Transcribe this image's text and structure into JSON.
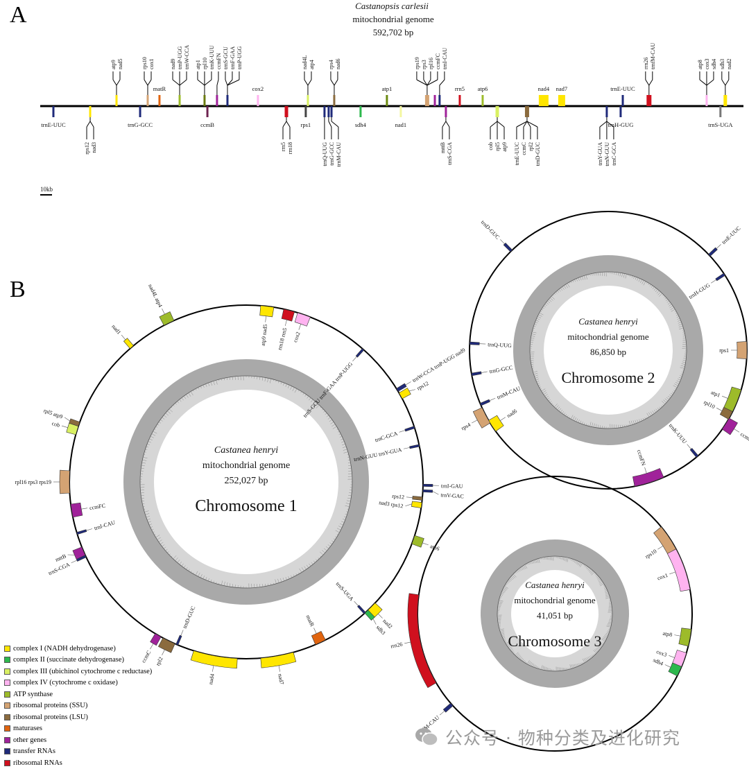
{
  "panelA": {
    "letter": "A",
    "species": "Castanopsis carlesii",
    "subtitle": "mitochondrial genome",
    "size": "592,702 bp",
    "total_kb": 592.702,
    "scale_label": "10kb",
    "features": [
      {
        "kb": 64.3,
        "color": "#ffe600",
        "side": "top",
        "labels": [
          "atp9",
          "nad5"
        ]
      },
      {
        "kb": 90.6,
        "color": "#d4a373",
        "side": "top",
        "labels": [
          "rps10",
          "cox1"
        ]
      },
      {
        "kb": 100.5,
        "color": "#e0640f",
        "side": "top",
        "labels": [
          "matR"
        ],
        "h": true
      },
      {
        "kb": 117.5,
        "color": "#9dbb2a",
        "side": "top",
        "labels": [
          "nad9",
          "trnP-UGG",
          "trnW-CCA"
        ]
      },
      {
        "kb": 138.5,
        "color": "#6b7a10",
        "side": "top",
        "labels": [
          "atp1",
          "rpl10",
          "trnK-UUU"
        ]
      },
      {
        "kb": 149.0,
        "color": "#a0229a",
        "side": "top",
        "labels": [
          "ccmFN"
        ]
      },
      {
        "kb": 157.8,
        "color": "#1f2a7a",
        "side": "top",
        "labels": [
          "trnS-GCU",
          "trnF-GAA",
          "trnP-UGG"
        ]
      },
      {
        "kb": 183.5,
        "color": "#ffb3f0",
        "side": "top",
        "labels": [
          "cox2"
        ],
        "h": true
      },
      {
        "kb": 225.6,
        "color": "#d9f062",
        "side": "top",
        "labels": [
          "nad4L",
          "atp4"
        ]
      },
      {
        "kb": 247.8,
        "color": "#8b6b3e",
        "side": "top",
        "labels": [
          "rps4",
          "nad6"
        ]
      },
      {
        "kb": 292.2,
        "color": "#6b8a10",
        "side": "top",
        "labels": [
          "atp1"
        ],
        "h": true
      },
      {
        "kb": 326.1,
        "color": "#d4a373",
        "side": "top",
        "labels": [
          "rps19",
          "rps3",
          "rpl16",
          "ccmFC"
        ],
        "w": 6
      },
      {
        "kb": 332.6,
        "color": "#a0229a",
        "side": "top",
        "labels": []
      },
      {
        "kb": 336.6,
        "color": "#1f2a7a",
        "side": "top",
        "labels": [
          "trnI-CAU"
        ]
      },
      {
        "kb": 353.6,
        "color": "#d0101e",
        "side": "top",
        "labels": [
          "rrn5"
        ],
        "h": true
      },
      {
        "kb": 372.9,
        "color": "#9dbb2a",
        "side": "top",
        "labels": [
          "atp6"
        ],
        "h": true
      },
      {
        "kb": 424.3,
        "color": "#ffe600",
        "side": "top",
        "labels": [
          "nad4"
        ],
        "h": true,
        "w": 14
      },
      {
        "kb": 439.5,
        "color": "#ffe600",
        "side": "top",
        "labels": [
          "nad7"
        ],
        "h": true,
        "w": 10
      },
      {
        "kb": 491.0,
        "color": "#1f2a7a",
        "side": "top",
        "labels": [
          "trnE-UUC"
        ],
        "h": true
      },
      {
        "kb": 513.1,
        "color": "#d0101e",
        "side": "top",
        "labels": [
          "rrn26",
          "trnfM-CAU"
        ],
        "w": 7
      },
      {
        "kb": 561.7,
        "color": "#ffb3f0",
        "side": "top",
        "labels": [
          "atp8",
          "cox3",
          "sdh4"
        ]
      },
      {
        "kb": 577.4,
        "color": "#ffe600",
        "side": "top",
        "labels": [
          "sdh3",
          "nad2"
        ],
        "w": 5
      },
      {
        "kb": 11.1,
        "color": "#1f2a7a",
        "side": "bottom",
        "labels": [
          "trnE-UUC"
        ],
        "h": true
      },
      {
        "kb": 42.1,
        "color": "#ffe600",
        "side": "bottom",
        "labels": [
          "rps12",
          "nad3"
        ]
      },
      {
        "kb": 84.2,
        "color": "#1f2a7a",
        "side": "bottom",
        "labels": [
          "trnG-GCC"
        ],
        "h": true
      },
      {
        "kb": 140.9,
        "color": "#6e2250",
        "side": "bottom",
        "labels": [
          "ccmB"
        ],
        "h": true
      },
      {
        "kb": 207.5,
        "color": "#d0101e",
        "side": "bottom",
        "labels": [
          "rrn5",
          "rrn18"
        ],
        "w": 5
      },
      {
        "kb": 223.8,
        "color": "#444444",
        "side": "bottom",
        "labels": [
          "rps1"
        ],
        "h": true
      },
      {
        "kb": 239.6,
        "color": "#1f2a7a",
        "side": "bottom",
        "labels": [
          "trnQ-UUG"
        ]
      },
      {
        "kb": 243.1,
        "color": "#1f2a7a",
        "side": "bottom",
        "labels": [
          "trnG-GCC"
        ]
      },
      {
        "kb": 245.5,
        "color": "#1f2a7a",
        "side": "bottom",
        "labels": [
          "trnM-CAU"
        ]
      },
      {
        "kb": 270.0,
        "color": "#2db84d",
        "side": "bottom",
        "labels": [
          "sdh4"
        ],
        "h": true
      },
      {
        "kb": 303.9,
        "color": "#f4f7a0",
        "side": "bottom",
        "labels": [
          "nad1"
        ],
        "h": true
      },
      {
        "kb": 341.9,
        "color": "#a0229a",
        "side": "bottom",
        "labels": [
          "mttB",
          "trnS-CGA"
        ]
      },
      {
        "kb": 385.2,
        "color": "#d9f062",
        "side": "bottom",
        "labels": [
          "cob",
          "rpl5",
          "atp9"
        ],
        "w": 5
      },
      {
        "kb": 410.3,
        "color": "#8b6b3e",
        "side": "bottom",
        "labels": [
          "trnE-UUC",
          "ccmC",
          "rpl2",
          "trnD-GUC"
        ],
        "w": 6
      },
      {
        "kb": 477.5,
        "color": "#1f2a7a",
        "side": "bottom",
        "labels": [
          "trnY-GUA",
          "trnN-GUU",
          "trnC-GCA"
        ]
      },
      {
        "kb": 489.2,
        "color": "#1f2a7a",
        "side": "bottom",
        "labels": [
          "trnH-GUG"
        ],
        "h": true
      },
      {
        "kb": 573.3,
        "color": "#777777",
        "side": "bottom",
        "labels": [
          "trnS-UGA"
        ],
        "h": true
      }
    ]
  },
  "panelB": {
    "letter": "B",
    "chromosomes": [
      {
        "species": "Castanea henryi",
        "subtitle": "mitochondrial genome",
        "size": "252,027 bp",
        "name": "Chromosome 1",
        "features": [
          {
            "at": 0.019,
            "span": 0.012,
            "color": "#ffe600",
            "side": "in",
            "label": "atp9 nad5"
          },
          {
            "at": 0.039,
            "span": 0.01,
            "color": "#d0101e",
            "side": "in",
            "label": "rrn18 rrn5"
          },
          {
            "at": 0.053,
            "span": 0.012,
            "color": "#ffb3f0",
            "side": "in",
            "label": "cox2"
          },
          {
            "at": 0.115,
            "span": 0.002,
            "color": "#1f2a7a",
            "side": "in",
            "label": "trnS-GCU trnF-GAA trnP-UGG"
          },
          {
            "at": 0.163,
            "span": 0.003,
            "color": "#1f2a7a",
            "side": "out",
            "label": "trnW-CCA trnP-UGG nad9"
          },
          {
            "at": 0.169,
            "span": 0.006,
            "color": "#ffe600",
            "side": "out",
            "label": "rps12"
          },
          {
            "at": 0.2,
            "span": 0.002,
            "color": "#1f2a7a",
            "side": "in",
            "label": "trnC-GCA"
          },
          {
            "at": 0.217,
            "span": 0.002,
            "color": "#1f2a7a",
            "side": "in",
            "label": "trnN-GUU trnY-GUA"
          },
          {
            "at": 0.253,
            "span": 0.002,
            "color": "#1f2a7a",
            "side": "out",
            "label": "trnI-GAU"
          },
          {
            "at": 0.258,
            "span": 0.002,
            "color": "#1f2a7a",
            "side": "out",
            "label": "trnV-GAC"
          },
          {
            "at": 0.265,
            "span": 0.003,
            "color": "#8b6b3e",
            "side": "in",
            "label": "rps12"
          },
          {
            "at": 0.271,
            "span": 0.005,
            "color": "#ffe600",
            "side": "in",
            "label": "nad3 rps12"
          },
          {
            "at": 0.303,
            "span": 0.008,
            "color": "#9dbb2a",
            "side": "out",
            "label": "atp6"
          },
          {
            "at": 0.375,
            "span": 0.01,
            "color": "#ffe600",
            "side": "out",
            "label": "nad2"
          },
          {
            "at": 0.381,
            "span": 0.004,
            "color": "#2db84d",
            "side": "out",
            "label": "sdh3"
          },
          {
            "at": 0.383,
            "span": 0.002,
            "color": "#1f2a7a",
            "side": "in",
            "label": "trnS-UGA"
          },
          {
            "at": 0.431,
            "span": 0.01,
            "color": "#e0640f",
            "side": "in",
            "label": "matR"
          },
          {
            "at": 0.472,
            "span": 0.03,
            "color": "#ffe600",
            "side": "out",
            "label": "nad7"
          },
          {
            "at": 0.528,
            "span": 0.04,
            "color": "#ffe600",
            "side": "out",
            "label": "nad4"
          },
          {
            "at": 0.564,
            "span": 0.002,
            "color": "#1f2a7a",
            "side": "in",
            "label": "trnD-GUC"
          },
          {
            "at": 0.572,
            "span": 0.012,
            "color": "#8b6b3e",
            "side": "out",
            "label": "rpl2"
          },
          {
            "at": 0.583,
            "span": 0.006,
            "color": "#a0229a",
            "side": "out",
            "label": "ccmC"
          },
          {
            "at": 0.681,
            "span": 0.002,
            "color": "#1f2a7a",
            "side": "out",
            "label": "trnS-CGA"
          },
          {
            "at": 0.686,
            "span": 0.008,
            "color": "#a0229a",
            "side": "out",
            "label": "mttB"
          },
          {
            "at": 0.703,
            "span": 0.002,
            "color": "#1f2a7a",
            "side": "in",
            "label": "trnI-CAU"
          },
          {
            "at": 0.724,
            "span": 0.012,
            "color": "#a0229a",
            "side": "in",
            "label": "ccmFC"
          },
          {
            "at": 0.75,
            "span": 0.02,
            "color": "#d4a373",
            "side": "out",
            "label": "rpl16 rps3 rps19"
          },
          {
            "at": 0.797,
            "span": 0.008,
            "color": "#d9f062",
            "side": "out",
            "label": "cob"
          },
          {
            "at": 0.803,
            "span": 0.004,
            "color": "#8b6b3e",
            "side": "out",
            "label": "rpl5 atp9"
          },
          {
            "at": 0.888,
            "span": 0.004,
            "color": "#ffe600",
            "side": "out",
            "label": "nad1"
          },
          {
            "at": 0.928,
            "span": 0.01,
            "color": "#9dbb2a",
            "side": "out",
            "label": "nad4L atp4"
          }
        ]
      },
      {
        "species": "Castanea henryi",
        "subtitle": "mitochondrial genome",
        "size": "86,850 bp",
        "name": "Chromosome 2",
        "features": [
          {
            "at": 0.13,
            "span": 0.003,
            "color": "#1f2a7a",
            "side": "out",
            "label": "trnE-UUC"
          },
          {
            "at": 0.158,
            "span": 0.003,
            "color": "#1f2a7a",
            "side": "in",
            "label": "trnH-GUG"
          },
          {
            "at": 0.25,
            "span": 0.02,
            "color": "#d4a373",
            "side": "in",
            "label": "rps1"
          },
          {
            "at": 0.311,
            "span": 0.03,
            "color": "#9dbb2a",
            "side": "in",
            "label": "atp1"
          },
          {
            "at": 0.328,
            "span": 0.01,
            "color": "#8b6b3e",
            "side": "in",
            "label": "rpl10"
          },
          {
            "at": 0.339,
            "span": 0.015,
            "color": "#a0229a",
            "side": "out",
            "label": "ccmB"
          },
          {
            "at": 0.389,
            "span": 0.003,
            "color": "#1f2a7a",
            "side": "in",
            "label": "trnK-UUU"
          },
          {
            "at": 0.452,
            "span": 0.035,
            "color": "#a0229a",
            "side": "in",
            "label": "ccmFN"
          },
          {
            "at": 0.658,
            "span": 0.015,
            "color": "#ffe600",
            "side": "in",
            "label": "nad6"
          },
          {
            "at": 0.672,
            "span": 0.02,
            "color": "#d4a373",
            "side": "out",
            "label": "rps4"
          },
          {
            "at": 0.686,
            "span": 0.003,
            "color": "#1f2a7a",
            "side": "in",
            "label": "trnM-CAU"
          },
          {
            "at": 0.722,
            "span": 0.003,
            "color": "#1f2a7a",
            "side": "in",
            "label": "trnG-GCC"
          },
          {
            "at": 0.758,
            "span": 0.003,
            "color": "#1f2a7a",
            "side": "in",
            "label": "trnQ-UUG"
          },
          {
            "at": 0.877,
            "span": 0.003,
            "color": "#1f2a7a",
            "side": "out",
            "label": "trnD-GUC"
          }
        ]
      },
      {
        "species": "Castanea henryi",
        "subtitle": "mitochondrial genome",
        "size": "41,051 bp",
        "name": "Chromosome 3",
        "features": [
          {
            "at": 0.161,
            "span": 0.04,
            "color": "#d4a373",
            "side": "in",
            "label": "rps10"
          },
          {
            "at": 0.197,
            "span": 0.05,
            "color": "#ffb3f0",
            "side": "in",
            "label": "cox1"
          },
          {
            "at": 0.278,
            "span": 0.02,
            "color": "#9dbb2a",
            "side": "in",
            "label": "atp8"
          },
          {
            "at": 0.306,
            "span": 0.02,
            "color": "#ffb3f0",
            "side": "in",
            "label": "cox3"
          },
          {
            "at": 0.319,
            "span": 0.012,
            "color": "#2db84d",
            "side": "in",
            "label": "sdh4"
          },
          {
            "at": 0.635,
            "span": 0.004,
            "color": "#1f2a7a",
            "side": "out",
            "label": "trnfM-CAU"
          },
          {
            "at": 0.719,
            "span": 0.106,
            "color": "#d0101e",
            "side": "out",
            "label": "rrn26"
          }
        ]
      }
    ]
  },
  "legend": [
    {
      "label": "complex I (NADH dehydrogenase)",
      "color": "#ffe600"
    },
    {
      "label": "complex II (succinate dehydrogenase)",
      "color": "#2db84d"
    },
    {
      "label": "complex III (ubichinol cytochrome c reductase)",
      "color": "#d9f062"
    },
    {
      "label": "complex IV (cytochrome c oxidase)",
      "color": "#ffb3f0"
    },
    {
      "label": "ATP synthase",
      "color": "#9dbb2a"
    },
    {
      "label": "ribosomal proteins (SSU)",
      "color": "#d4a373"
    },
    {
      "label": "ribosomal proteins (LSU)",
      "color": "#8b6b3e"
    },
    {
      "label": "maturases",
      "color": "#e0640f"
    },
    {
      "label": "other genes",
      "color": "#a0229a"
    },
    {
      "label": "transfer RNAs",
      "color": "#1f2a7a"
    },
    {
      "label": "ribosomal RNAs",
      "color": "#d0101e"
    }
  ],
  "watermark": "公众号 · 物种分类及进化研究"
}
